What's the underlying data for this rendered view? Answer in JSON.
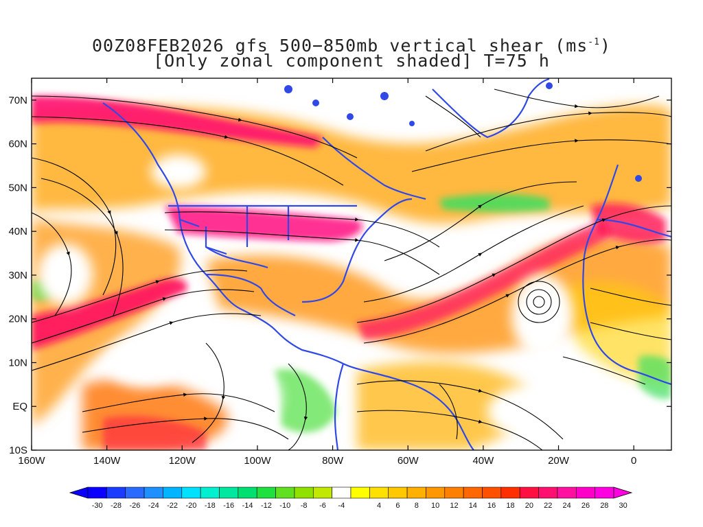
{
  "title": {
    "line1_prefix": "00Z08FEB2026 gfs 500−850mb vertical shear (ms",
    "line1_sup": "-1",
    "line1_suffix": ")",
    "line2": "[Only zonal component shaded] T=75 h"
  },
  "axes": {
    "lon_ticks": [
      "160W",
      "140W",
      "120W",
      "100W",
      "80W",
      "60W",
      "40W",
      "20W",
      "0"
    ],
    "lat_ticks": [
      "70N",
      "60N",
      "50N",
      "40N",
      "30N",
      "20N",
      "10N",
      "EQ",
      "10S"
    ],
    "lon_range": [
      -160,
      10
    ],
    "lat_range": [
      -10,
      75
    ]
  },
  "colorbar": {
    "labels": [
      "-30",
      "-28",
      "-26",
      "-24",
      "-22",
      "-20",
      "-18",
      "-16",
      "-14",
      "-12",
      "-10",
      "-8",
      "-6",
      "-4",
      "4",
      "6",
      "8",
      "10",
      "12",
      "14",
      "16",
      "18",
      "20",
      "22",
      "24",
      "26",
      "28",
      "30"
    ],
    "colors": [
      "#0a00ff",
      "#1a3cff",
      "#2a6aff",
      "#1e90ff",
      "#00b4ff",
      "#00e0ff",
      "#00f0d0",
      "#00e8a0",
      "#00e070",
      "#20e040",
      "#60e020",
      "#90e000",
      "#c0e800",
      "#ffffff",
      "#ffff00",
      "#ffe000",
      "#ffc800",
      "#ffb000",
      "#ff9800",
      "#ff8000",
      "#ff6800",
      "#ff5000",
      "#ff3000",
      "#ff1040",
      "#ff1070",
      "#ff10a0",
      "#ff00c8",
      "#ff00e0"
    ]
  },
  "map": {
    "background": "#ffffff",
    "coast_color": "#2f48e6",
    "stream_color": "#000000"
  }
}
